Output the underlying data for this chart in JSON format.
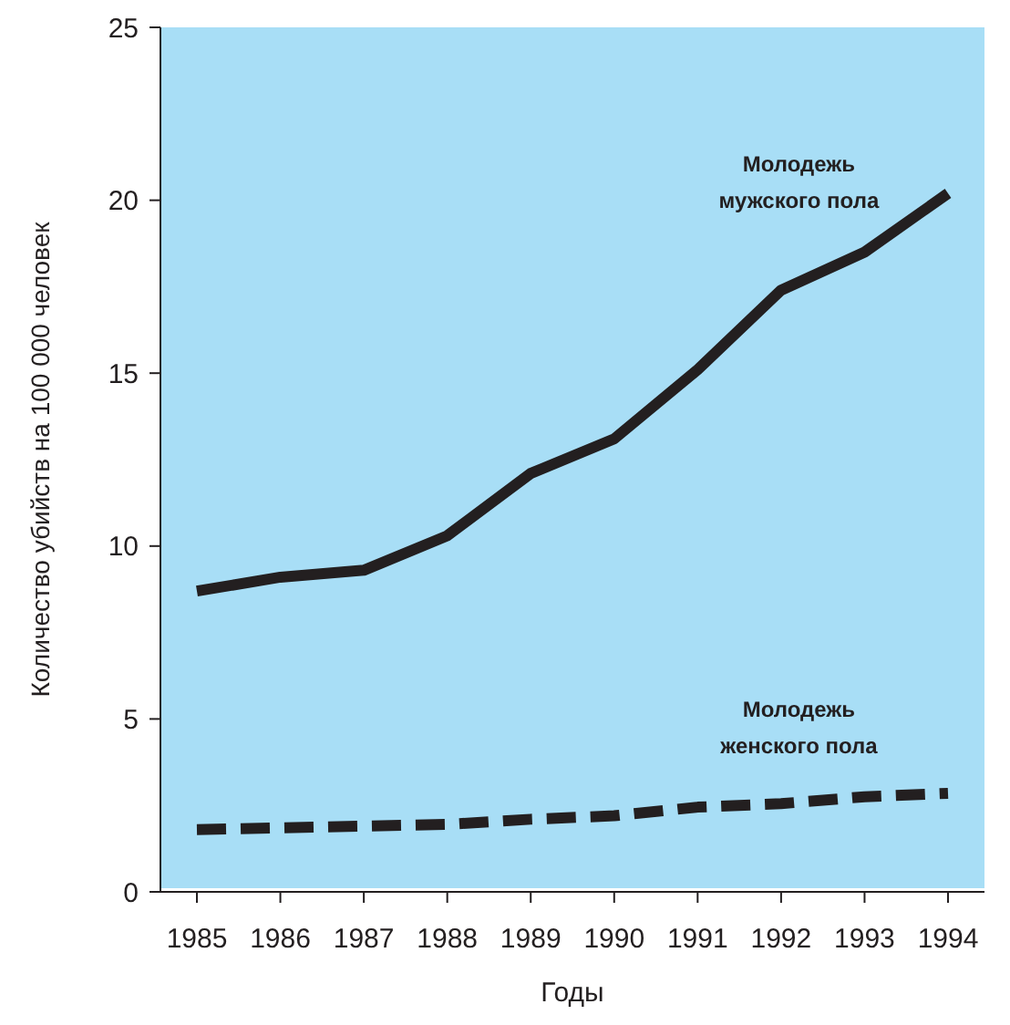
{
  "chart_data": {
    "type": "line",
    "xlabel": "Годы",
    "ylabel": "Количество убийств на 100 000 человек",
    "categories": [
      "1985",
      "1986",
      "1987",
      "1988",
      "1989",
      "1990",
      "1991",
      "1992",
      "1993",
      "1994"
    ],
    "series": [
      {
        "name": "Молодежь мужского пола",
        "color": "#231f20",
        "line_style": "solid",
        "values": [
          8.7,
          9.1,
          9.3,
          10.3,
          12.1,
          13.1,
          15.1,
          17.4,
          18.5,
          20.2
        ]
      },
      {
        "name": "Молодежь женского пола",
        "color": "#231f20",
        "line_style": "dashed",
        "values": [
          1.8,
          1.85,
          1.9,
          1.95,
          2.1,
          2.2,
          2.45,
          2.55,
          2.75,
          2.85
        ]
      }
    ],
    "ylim": [
      0,
      25
    ],
    "yticks": [
      0,
      5,
      10,
      15,
      20,
      25
    ],
    "grid": false,
    "legend": false,
    "marker": "none"
  }
}
